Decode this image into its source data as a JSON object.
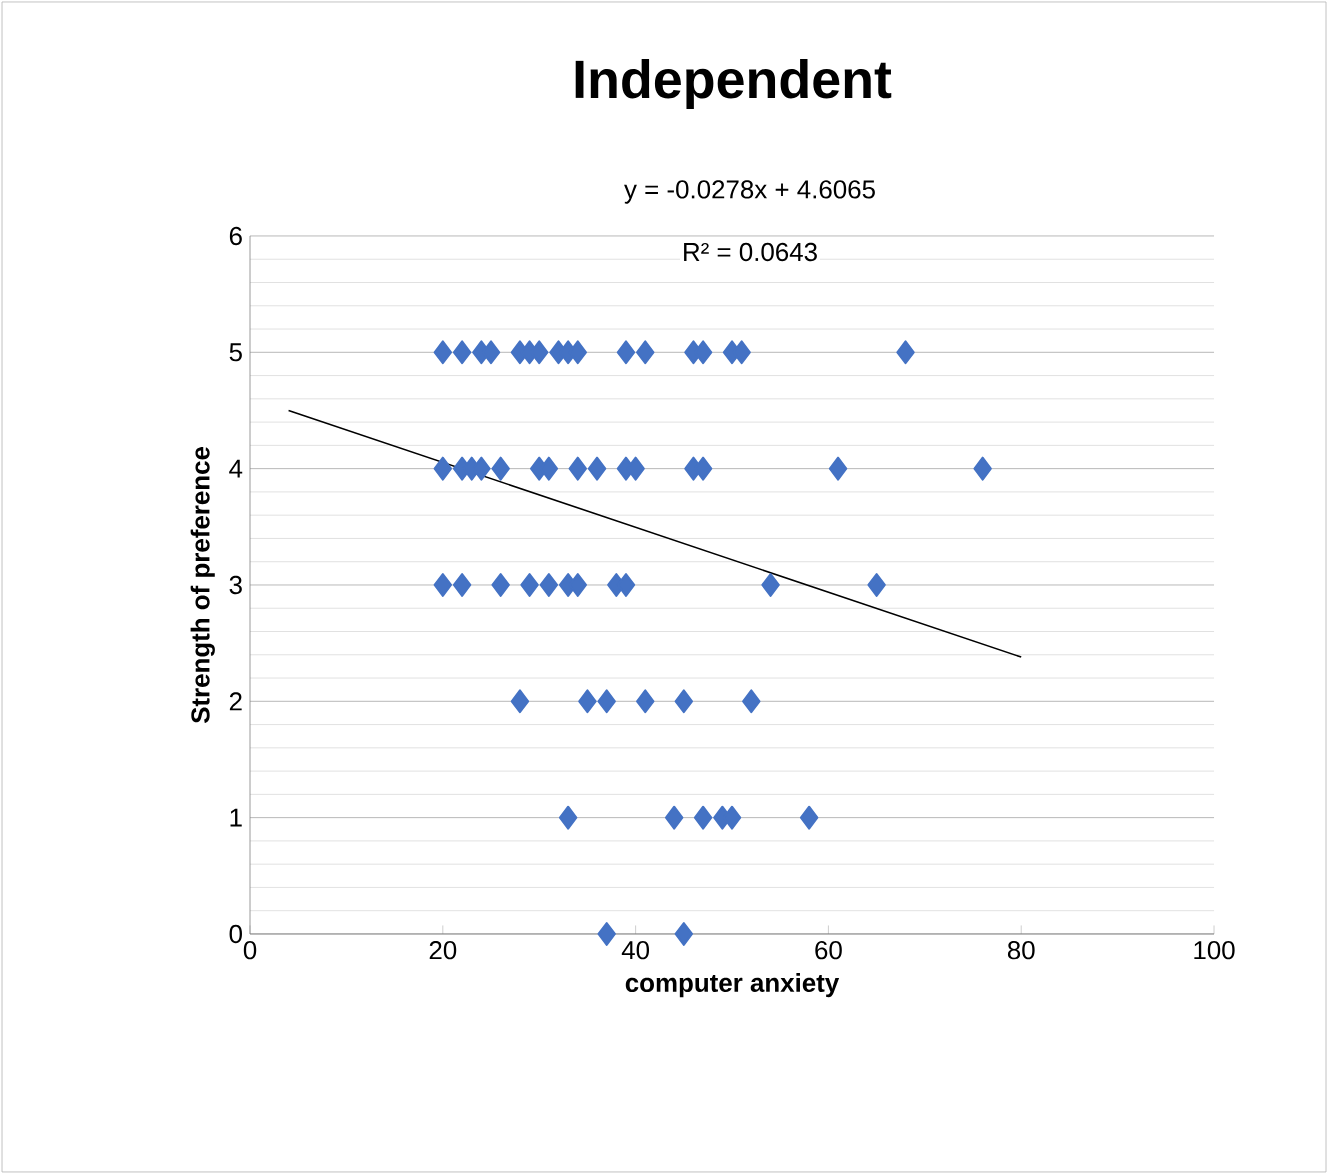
{
  "chart_data": {
    "type": "scatter",
    "title": "Independent",
    "xlabel": "computer anxiety",
    "ylabel": "Strength of preference",
    "annotations": [
      "y = -0.0278x + 4.6065",
      "R² = 0.0643"
    ],
    "xlim": [
      0,
      100
    ],
    "xticks": [
      0,
      20,
      40,
      60,
      80,
      100
    ],
    "ylim": [
      0,
      6
    ],
    "yticks": [
      0,
      1,
      2,
      3,
      4,
      5,
      6
    ],
    "grid": "y",
    "marker": "diamond",
    "series": [
      {
        "color": "#4472c4",
        "x": [
          20,
          22,
          24,
          25,
          28,
          29,
          30,
          32,
          33,
          34,
          39,
          41,
          46,
          47,
          50,
          51,
          68,
          20,
          22,
          23,
          24,
          26,
          30,
          31,
          34,
          36,
          39,
          40,
          46,
          47,
          61,
          76,
          20,
          22,
          26,
          29,
          31,
          33,
          34,
          38,
          39,
          54,
          65,
          28,
          35,
          37,
          41,
          45,
          52,
          33,
          44,
          47,
          49,
          50,
          58,
          37,
          45
        ],
        "values": [
          5,
          5,
          5,
          5,
          5,
          5,
          5,
          5,
          5,
          5,
          5,
          5,
          5,
          5,
          5,
          5,
          5,
          4,
          4,
          4,
          4,
          4,
          4,
          4,
          4,
          4,
          4,
          4,
          4,
          4,
          4,
          4,
          3,
          3,
          3,
          3,
          3,
          3,
          3,
          3,
          3,
          3,
          3,
          2,
          2,
          2,
          2,
          2,
          2,
          1,
          1,
          1,
          1,
          1,
          1,
          0,
          0
        ]
      },
      {
        "type": "line",
        "color": "#000000",
        "marker": "none",
        "x": [
          4,
          80
        ],
        "values": [
          4.5,
          2.38
        ]
      }
    ]
  }
}
